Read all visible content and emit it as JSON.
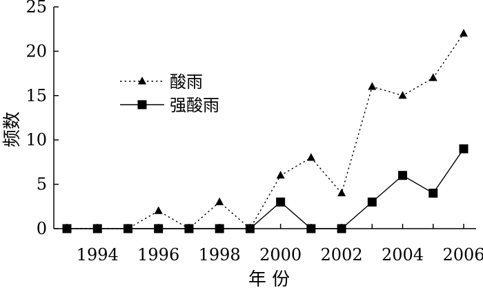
{
  "chart_data": {
    "type": "line",
    "title": "",
    "xlabel": "年 份",
    "ylabel": "频数",
    "x": [
      1993,
      1994,
      1995,
      1996,
      1997,
      1998,
      1999,
      2000,
      2001,
      2002,
      2003,
      2004,
      2005,
      2006
    ],
    "xlim": [
      1993,
      2006
    ],
    "ylim": [
      0,
      25
    ],
    "x_ticks": [
      1994,
      1996,
      1998,
      2000,
      2002,
      2004,
      2006
    ],
    "y_ticks": [
      0,
      5,
      10,
      15,
      20,
      25
    ],
    "grid": false,
    "legend_position": "upper-left",
    "series": [
      {
        "name": "酸雨",
        "marker": "triangle",
        "line_style": "dotted",
        "values": [
          0,
          0,
          0,
          2,
          0,
          3,
          0,
          6,
          8,
          4,
          16,
          15,
          17,
          22
        ]
      },
      {
        "name": "强酸雨",
        "marker": "square",
        "line_style": "solid",
        "values": [
          0,
          0,
          0,
          0,
          0,
          0,
          0,
          3,
          0,
          0,
          3,
          6,
          4,
          9
        ]
      }
    ],
    "colors": {
      "line": "#000000",
      "background": "#ffffff"
    }
  }
}
